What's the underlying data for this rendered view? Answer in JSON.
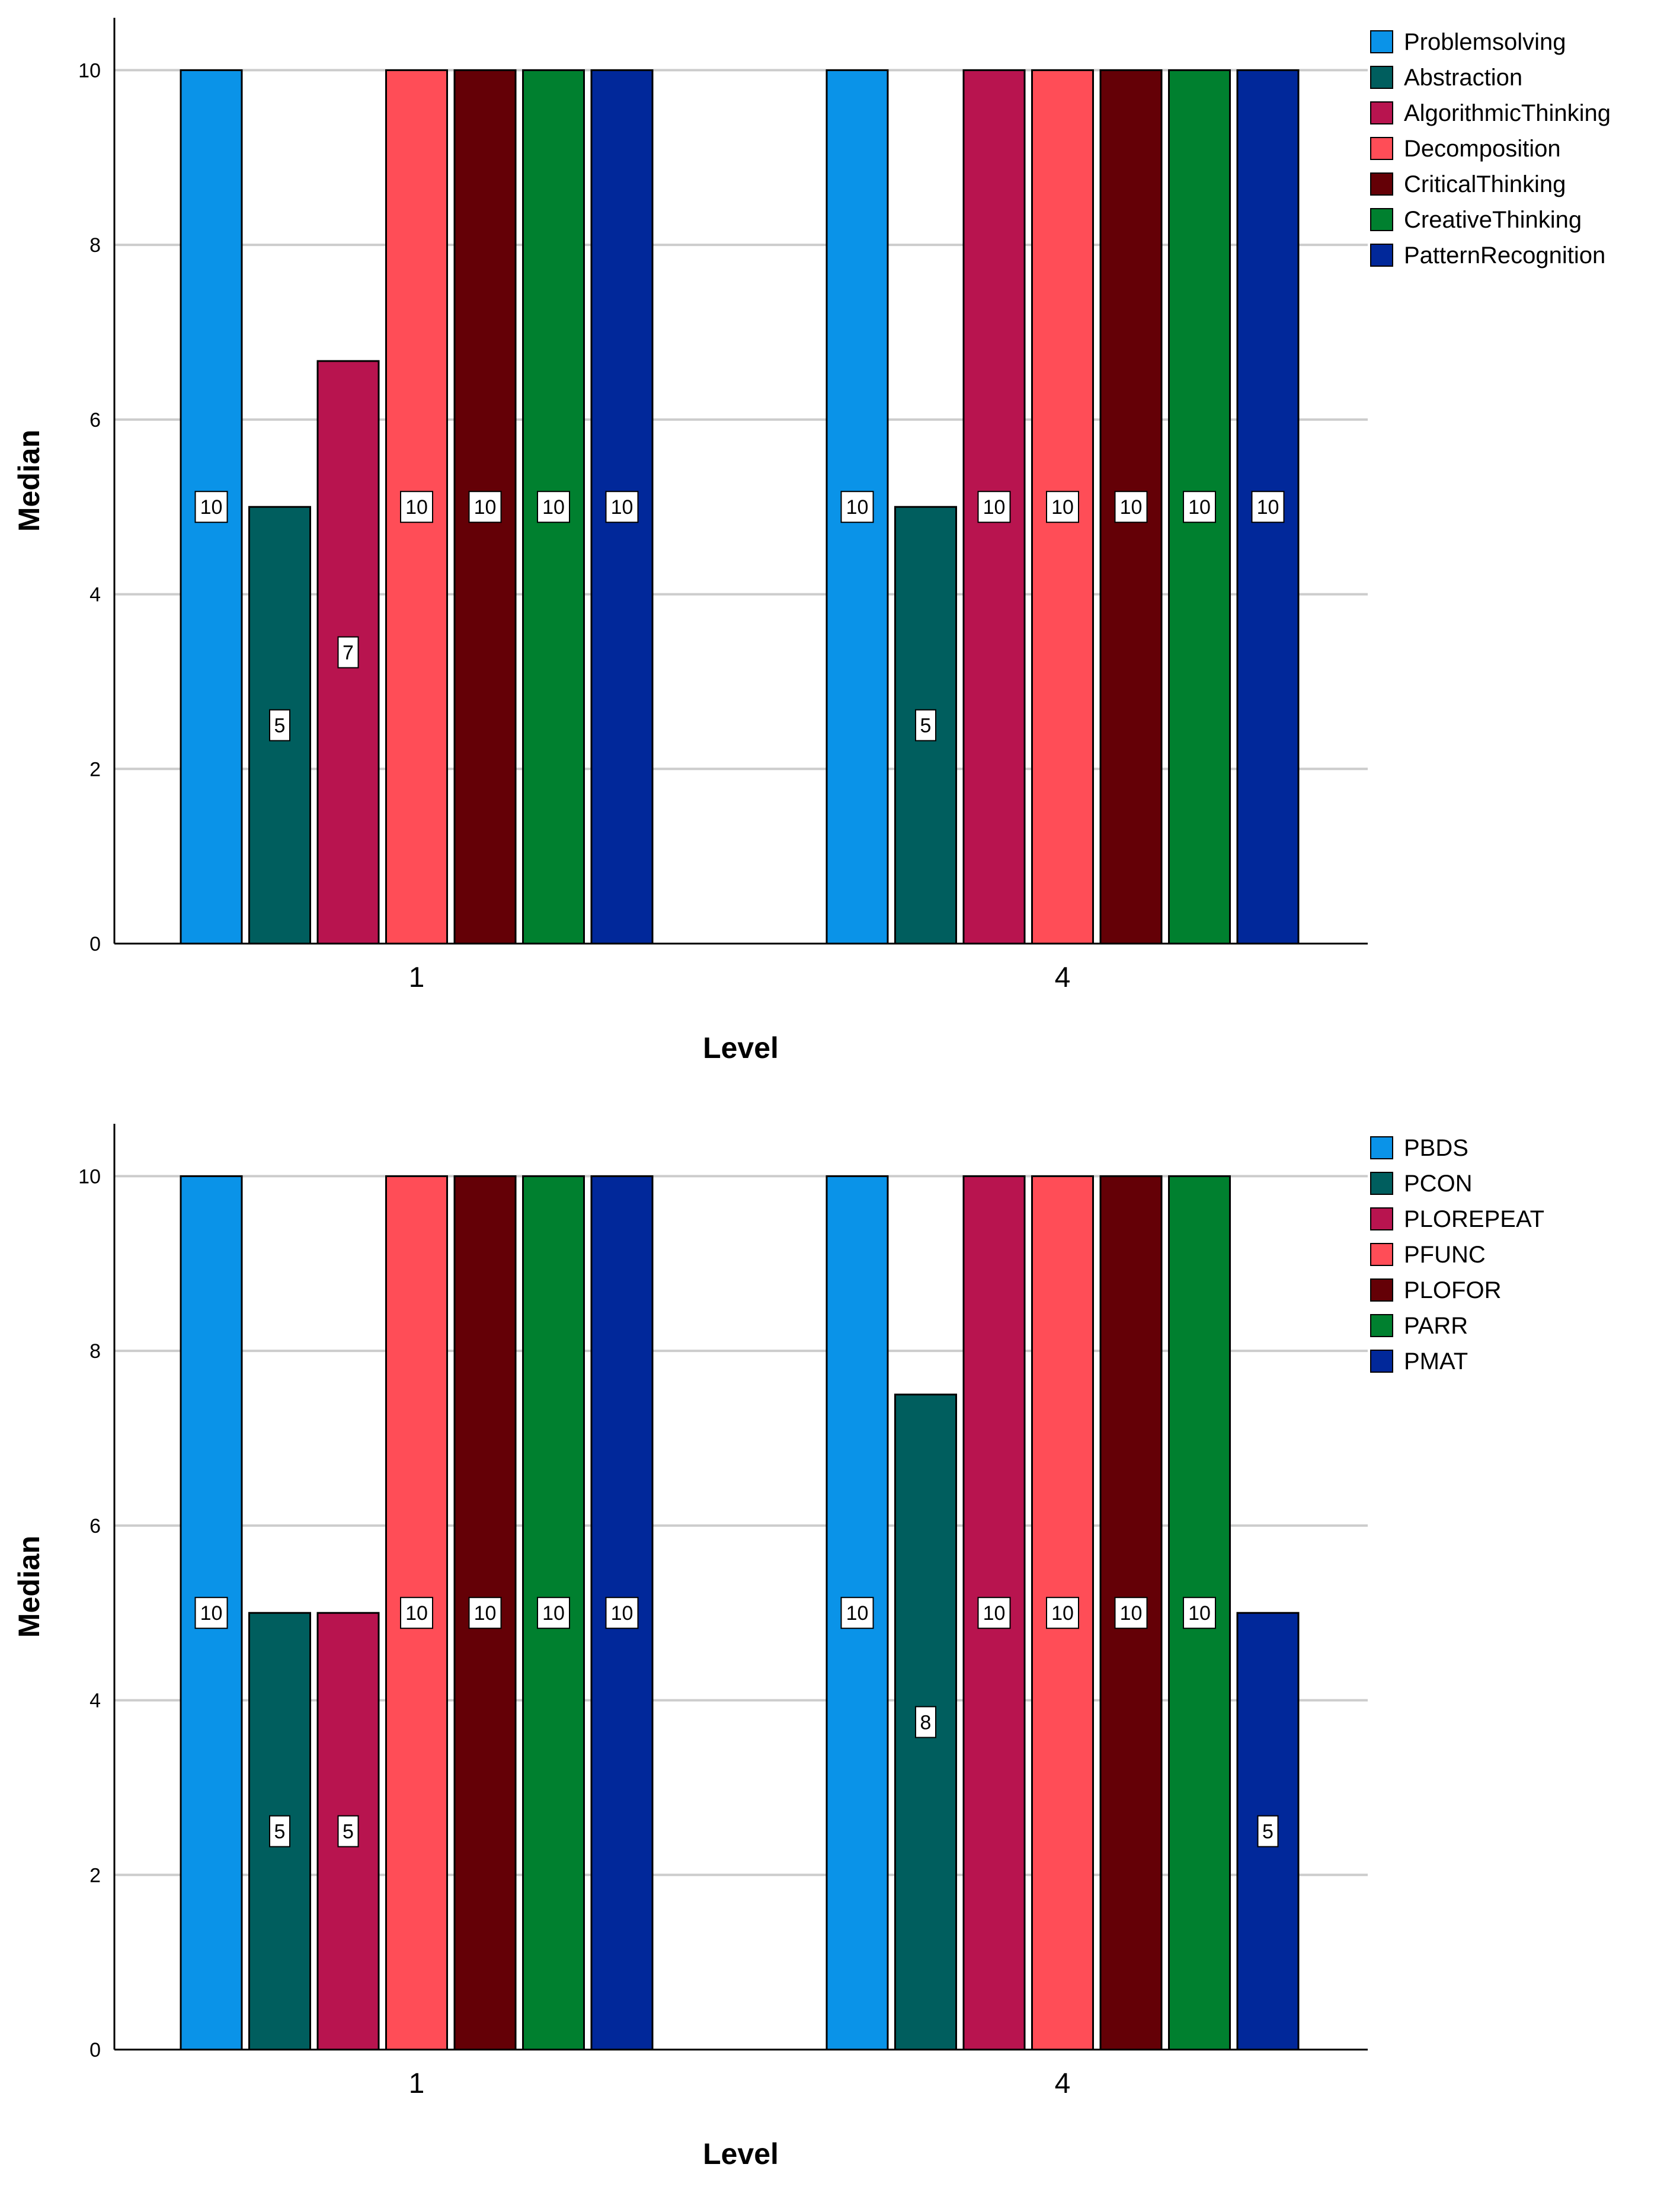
{
  "chart_data": [
    {
      "type": "bar",
      "title": "",
      "xlabel": "Level",
      "ylabel": "Median",
      "categories": [
        "1",
        "4"
      ],
      "yticks": [
        "0",
        "2",
        "4",
        "6",
        "8",
        "10"
      ],
      "ylim": [
        0,
        10.6
      ],
      "grid": true,
      "legend_position": "top-right",
      "series": [
        {
          "name": "Problemsolving",
          "color": "#0a93e8",
          "values": [
            10,
            10
          ],
          "labels": [
            "10",
            "10"
          ]
        },
        {
          "name": "Abstraction",
          "color": "#005e5e",
          "values": [
            5,
            5
          ],
          "labels": [
            "5",
            "5"
          ]
        },
        {
          "name": "AlgorithmicThinking",
          "color": "#b8144f",
          "values": [
            6.67,
            10
          ],
          "labels": [
            "7",
            "10"
          ]
        },
        {
          "name": "Decomposition",
          "color": "#ff4d57",
          "values": [
            10,
            10
          ],
          "labels": [
            "10",
            "10"
          ]
        },
        {
          "name": "CriticalThinking",
          "color": "#640006",
          "values": [
            10,
            10
          ],
          "labels": [
            "10",
            "10"
          ]
        },
        {
          "name": "CreativeThinking",
          "color": "#00802f",
          "values": [
            10,
            10
          ],
          "labels": [
            "10",
            "10"
          ]
        },
        {
          "name": "PatternRecognition",
          "color": "#01289a",
          "values": [
            10,
            10
          ],
          "labels": [
            "10",
            "10"
          ]
        }
      ]
    },
    {
      "type": "bar",
      "title": "",
      "xlabel": "Level",
      "ylabel": "Median",
      "categories": [
        "1",
        "4"
      ],
      "yticks": [
        "0",
        "2",
        "4",
        "6",
        "8",
        "10"
      ],
      "ylim": [
        0,
        10.6
      ],
      "grid": true,
      "legend_position": "top-right",
      "series": [
        {
          "name": "PBDS",
          "color": "#0a93e8",
          "values": [
            10,
            10
          ],
          "labels": [
            "10",
            "10"
          ]
        },
        {
          "name": "PCON",
          "color": "#005e5e",
          "values": [
            5,
            7.5
          ],
          "labels": [
            "5",
            "8"
          ]
        },
        {
          "name": "PLOREPEAT",
          "color": "#b8144f",
          "values": [
            5,
            10
          ],
          "labels": [
            "5",
            "10"
          ]
        },
        {
          "name": "PFUNC",
          "color": "#ff4d57",
          "values": [
            10,
            10
          ],
          "labels": [
            "10",
            "10"
          ]
        },
        {
          "name": "PLOFOR",
          "color": "#640006",
          "values": [
            10,
            10
          ],
          "labels": [
            "10",
            "10"
          ]
        },
        {
          "name": "PARR",
          "color": "#00802f",
          "values": [
            10,
            10
          ],
          "labels": [
            "10",
            "10"
          ]
        },
        {
          "name": "PMAT",
          "color": "#01289a",
          "values": [
            10,
            5
          ],
          "labels": [
            "10",
            "5"
          ]
        }
      ]
    }
  ]
}
